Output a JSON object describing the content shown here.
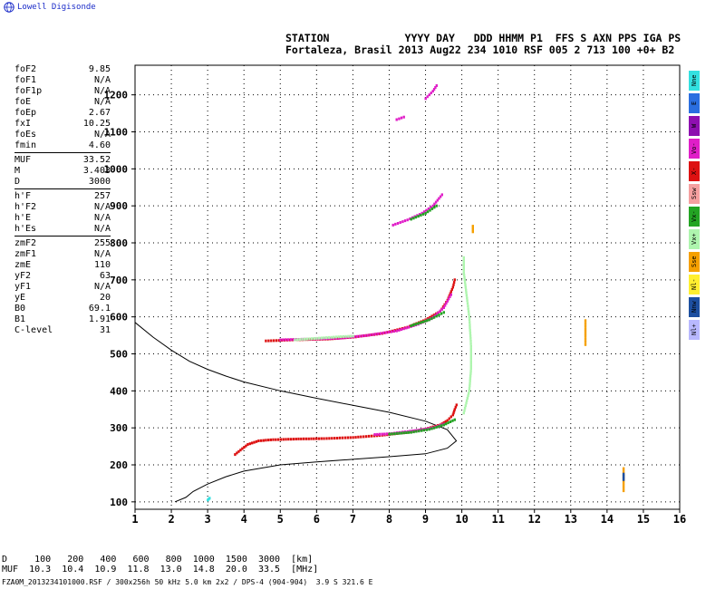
{
  "brand": "Lowell Digisonde",
  "header": {
    "line1": "STATION            YYYY DAY   DDD HHMM P1  FFS S AXN PPS IGA PS",
    "line2": "Fortaleza, Brasil 2013 Aug22 234 1010 RSF 005 2 713 100 +0+ B2"
  },
  "params": {
    "group1": [
      {
        "label": "foF2",
        "value": "9.85"
      },
      {
        "label": "foF1",
        "value": "N/A"
      },
      {
        "label": "foF1p",
        "value": "N/A"
      },
      {
        "label": "foE",
        "value": "N/A"
      },
      {
        "label": "foEp",
        "value": "2.67"
      },
      {
        "label": "fxI",
        "value": "10.25"
      },
      {
        "label": "foEs",
        "value": "N/A"
      },
      {
        "label": "fmin",
        "value": "4.60"
      }
    ],
    "group2": [
      {
        "label": "MUF",
        "value": "33.52"
      },
      {
        "label": "M",
        "value": "3.403"
      },
      {
        "label": "D",
        "value": "3000"
      }
    ],
    "group3": [
      {
        "label": "h'F",
        "value": "257"
      },
      {
        "label": "h'F2",
        "value": "N/A"
      },
      {
        "label": "h'E",
        "value": "N/A"
      },
      {
        "label": "h'Es",
        "value": "N/A"
      }
    ],
    "group4": [
      {
        "label": "zmF2",
        "value": "255"
      },
      {
        "label": "zmF1",
        "value": "N/A"
      },
      {
        "label": "zmE",
        "value": "110"
      },
      {
        "label": "yF2",
        "value": "63"
      },
      {
        "label": "yF1",
        "value": "N/A"
      },
      {
        "label": "yE",
        "value": "20"
      },
      {
        "label": "B0",
        "value": "69.1"
      },
      {
        "label": "B1",
        "value": "1.91"
      },
      {
        "label": "C-level",
        "value": "31"
      }
    ]
  },
  "legend": [
    {
      "label": "Nne",
      "color": "#33e0e0"
    },
    {
      "label": "E",
      "color": "#2a6ee0"
    },
    {
      "label": "W",
      "color": "#8e0fb0"
    },
    {
      "label": "Vo-",
      "color": "#e01ec8"
    },
    {
      "label": "X-",
      "color": "#dd1111"
    },
    {
      "label": "Ssw",
      "color": "#f5a0a0"
    },
    {
      "label": "Vx-",
      "color": "#23a423"
    },
    {
      "label": "Vx+",
      "color": "#aef5ae"
    },
    {
      "label": "Sse",
      "color": "#f5a000"
    },
    {
      "label": "Nl-",
      "color": "#ffef30"
    },
    {
      "label": "Nnw",
      "color": "#1d4fa0"
    },
    {
      "label": "Nl+",
      "color": "#b8b8ff"
    }
  ],
  "footer": {
    "d_line": "D     100   200   400   600   800  1000  1500  3000  [km]",
    "muf_line": "MUF  10.3  10.4  10.9  11.8  13.0  14.8  20.0  33.5  [MHz]",
    "file_line": "FZA0M_2013234101000.RSF / 300x256h 50 kHz 5.0 km 2x2 / DPS-4 (904-904)  3.9 S 321.6 E"
  },
  "chart_data": {
    "type": "scatter",
    "xlim": [
      1,
      16
    ],
    "ylim": [
      80,
      1280
    ],
    "xticks": [
      "1",
      "2",
      "3",
      "4",
      "5",
      "6",
      "7",
      "8",
      "9",
      "10",
      "11",
      "12",
      "13",
      "14",
      "15",
      "16"
    ],
    "yticks": [
      "100",
      "200",
      "300",
      "400",
      "500",
      "600",
      "700",
      "800",
      "900",
      "1000",
      "1100",
      "1200"
    ],
    "grid": true,
    "series": [
      {
        "name": "X-",
        "color": "#dd1111",
        "traces": [
          [
            [
              3.75,
              228
            ],
            [
              3.9,
              240
            ],
            [
              4.1,
              255
            ],
            [
              4.4,
              265
            ],
            [
              4.8,
              268
            ],
            [
              5.5,
              270
            ],
            [
              6.2,
              271
            ],
            [
              7.0,
              274
            ],
            [
              7.8,
              280
            ],
            [
              8.5,
              288
            ],
            [
              9.0,
              297
            ],
            [
              9.4,
              308
            ],
            [
              9.6,
              320
            ],
            [
              9.75,
              335
            ],
            [
              9.8,
              350
            ],
            [
              9.85,
              362
            ]
          ],
          [
            [
              4.6,
              535
            ],
            [
              5.4,
              538
            ],
            [
              6.3,
              540
            ],
            [
              7.0,
              545
            ],
            [
              7.8,
              555
            ],
            [
              8.5,
              572
            ],
            [
              9.0,
              592
            ],
            [
              9.4,
              615
            ],
            [
              9.6,
              645
            ],
            [
              9.75,
              680
            ],
            [
              9.8,
              700
            ]
          ]
        ]
      },
      {
        "name": "Vo-",
        "color": "#e01ec8",
        "traces": [
          [
            [
              7.6,
              282
            ],
            [
              8.0,
              284
            ],
            [
              8.5,
              290
            ],
            [
              8.9,
              295
            ],
            [
              9.2,
              300
            ],
            [
              9.5,
              310
            ]
          ],
          [
            [
              5.0,
              538
            ],
            [
              5.8,
              540
            ],
            [
              6.6,
              542
            ],
            [
              7.4,
              550
            ],
            [
              8.2,
              562
            ],
            [
              8.8,
              580
            ],
            [
              9.2,
              598
            ],
            [
              9.5,
              625
            ],
            [
              9.7,
              660
            ]
          ],
          [
            [
              8.1,
              848
            ],
            [
              8.5,
              862
            ],
            [
              8.9,
              880
            ],
            [
              9.2,
              900
            ],
            [
              9.45,
              930
            ]
          ],
          [
            [
              8.2,
              1133
            ],
            [
              8.4,
              1140
            ]
          ],
          [
            [
              9.0,
              1190
            ],
            [
              9.2,
              1210
            ],
            [
              9.3,
              1225
            ]
          ]
        ]
      },
      {
        "name": "Vx-",
        "color": "#23a423",
        "traces": [
          [
            [
              8.0,
              283
            ],
            [
              8.6,
              288
            ],
            [
              9.1,
              296
            ],
            [
              9.5,
              308
            ],
            [
              9.8,
              322
            ]
          ],
          [
            [
              8.6,
              576
            ],
            [
              9.1,
              592
            ],
            [
              9.5,
              612
            ]
          ],
          [
            [
              8.6,
              864
            ],
            [
              9.0,
              880
            ],
            [
              9.3,
              900
            ]
          ]
        ]
      },
      {
        "name": "Vx+",
        "color": "#aef5ae",
        "traces": [
          [
            [
              10.05,
              340
            ],
            [
              10.2,
              400
            ],
            [
              10.25,
              460
            ],
            [
              10.25,
              520
            ],
            [
              10.2,
              600
            ],
            [
              10.1,
              680
            ],
            [
              10.05,
              720
            ],
            [
              10.05,
              760
            ]
          ],
          [
            [
              5.4,
              538
            ],
            [
              6.0,
              542
            ],
            [
              6.6,
              546
            ],
            [
              7.0,
              548
            ]
          ]
        ]
      },
      {
        "name": "Sse",
        "color": "#f5a000",
        "traces": [
          [
            [
              10.3,
              830
            ],
            [
              10.3,
              845
            ]
          ],
          [
            [
              14.45,
              130
            ],
            [
              14.45,
              190
            ]
          ],
          [
            [
              13.4,
              525
            ],
            [
              13.4,
              590
            ]
          ]
        ]
      },
      {
        "name": "Nnw",
        "color": "#1d4fa0",
        "traces": [
          [
            [
              14.45,
              160
            ],
            [
              14.45,
              175
            ]
          ]
        ]
      },
      {
        "name": "Nne",
        "color": "#33e0e0",
        "traces": [
          [
            [
              3.0,
              105
            ],
            [
              3.05,
              110
            ]
          ]
        ]
      }
    ],
    "profile": [
      [
        1.0,
        585
      ],
      [
        1.5,
        545
      ],
      [
        2.0,
        510
      ],
      [
        2.5,
        480
      ],
      [
        3.0,
        458
      ],
      [
        3.5,
        440
      ],
      [
        4.0,
        424
      ],
      [
        5.0,
        400
      ],
      [
        6.0,
        380
      ],
      [
        7.0,
        361
      ],
      [
        8.0,
        342
      ],
      [
        9.0,
        318
      ],
      [
        9.6,
        295
      ],
      [
        9.85,
        265
      ],
      [
        9.6,
        245
      ],
      [
        9.0,
        230
      ],
      [
        8.0,
        222
      ],
      [
        7.0,
        215
      ],
      [
        6.0,
        208
      ],
      [
        5.0,
        200
      ],
      [
        4.0,
        183
      ],
      [
        3.5,
        168
      ],
      [
        3.0,
        148
      ],
      [
        2.6,
        128
      ],
      [
        2.4,
        112
      ],
      [
        2.1,
        100
      ]
    ]
  }
}
